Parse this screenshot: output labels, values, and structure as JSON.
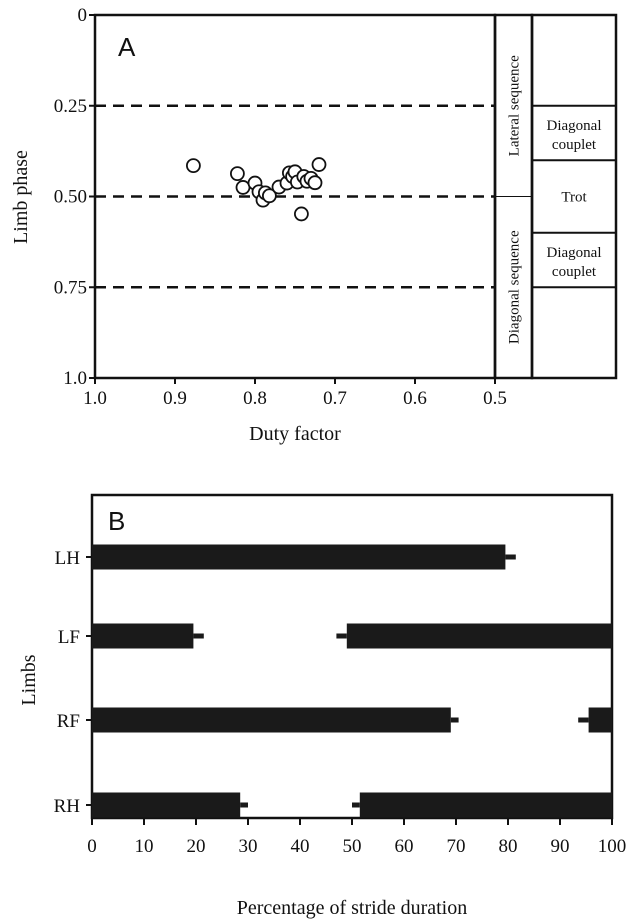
{
  "chart_data": [
    {
      "type": "scatter",
      "panel_label": "A",
      "xlabel": "Duty factor",
      "ylabel": "Limb phase",
      "xlim": [
        1.0,
        0.5
      ],
      "ylim": [
        0,
        1.0
      ],
      "x_reversed": true,
      "y_reversed": true,
      "x_ticks": [
        1.0,
        0.9,
        0.8,
        0.7,
        0.6,
        0.5
      ],
      "x_tick_labels": [
        "1.0",
        "0.9",
        "0.8",
        "0.7",
        "0.6",
        "0.5"
      ],
      "y_ticks": [
        0,
        0.25,
        0.5,
        0.75,
        1.0
      ],
      "y_tick_labels": [
        "0",
        "0.25",
        "0.50",
        "0.75",
        "1.0"
      ],
      "reference_lines_y": [
        0.25,
        0.5,
        0.75
      ],
      "points": [
        {
          "x": 0.877,
          "y": 0.415
        },
        {
          "x": 0.822,
          "y": 0.437
        },
        {
          "x": 0.815,
          "y": 0.475
        },
        {
          "x": 0.8,
          "y": 0.463
        },
        {
          "x": 0.795,
          "y": 0.487
        },
        {
          "x": 0.79,
          "y": 0.51
        },
        {
          "x": 0.787,
          "y": 0.49
        },
        {
          "x": 0.782,
          "y": 0.498
        },
        {
          "x": 0.77,
          "y": 0.474
        },
        {
          "x": 0.76,
          "y": 0.463
        },
        {
          "x": 0.757,
          "y": 0.435
        },
        {
          "x": 0.753,
          "y": 0.445
        },
        {
          "x": 0.75,
          "y": 0.432
        },
        {
          "x": 0.747,
          "y": 0.46
        },
        {
          "x": 0.742,
          "y": 0.548
        },
        {
          "x": 0.739,
          "y": 0.445
        },
        {
          "x": 0.735,
          "y": 0.458
        },
        {
          "x": 0.73,
          "y": 0.45
        },
        {
          "x": 0.725,
          "y": 0.462
        },
        {
          "x": 0.72,
          "y": 0.412
        }
      ],
      "gait_bands": {
        "outer": [
          {
            "label": "Lateral sequence",
            "from": 0,
            "to": 0.5
          },
          {
            "label": "Diagonal sequence",
            "from": 0.5,
            "to": 1.0
          }
        ],
        "inner": [
          {
            "label": "",
            "from": 0,
            "to": 0.25
          },
          {
            "label": "Diagonal couplet",
            "from": 0.25,
            "to": 0.4
          },
          {
            "label": "Trot",
            "from": 0.4,
            "to": 0.6
          },
          {
            "label": "Diagonal couplet",
            "from": 0.6,
            "to": 0.75
          },
          {
            "label": "",
            "from": 0.75,
            "to": 1.0
          }
        ]
      }
    },
    {
      "type": "bar",
      "orientation": "horizontal",
      "panel_label": "B",
      "xlabel": "Percentage of stride duration",
      "ylabel": "Limbs",
      "xlim": [
        0,
        100
      ],
      "x_ticks": [
        0,
        10,
        20,
        30,
        40,
        50,
        60,
        70,
        80,
        90,
        100
      ],
      "x_tick_labels": [
        "0",
        "10",
        "20",
        "30",
        "40",
        "50",
        "60",
        "70",
        "80",
        "90",
        "100"
      ],
      "categories": [
        "LH",
        "LF",
        "RF",
        "RH"
      ],
      "segments": [
        {
          "limb": "LH",
          "start": 0,
          "end": 79.5,
          "start_err": 0,
          "end_err": 2
        },
        {
          "limb": "LF",
          "start": 0,
          "end": 19.5,
          "start_err": 0,
          "end_err": 2
        },
        {
          "limb": "LF",
          "start": 49,
          "end": 100,
          "start_err": 2,
          "end_err": 0
        },
        {
          "limb": "RF",
          "start": 0,
          "end": 69,
          "start_err": 0,
          "end_err": 1.5
        },
        {
          "limb": "RF",
          "start": 95.5,
          "end": 100,
          "start_err": 2,
          "end_err": 0
        },
        {
          "limb": "RH",
          "start": 0,
          "end": 28.5,
          "start_err": 0,
          "end_err": 1.5
        },
        {
          "limb": "RH",
          "start": 51.5,
          "end": 100,
          "start_err": 1.5,
          "end_err": 0
        }
      ]
    }
  ]
}
